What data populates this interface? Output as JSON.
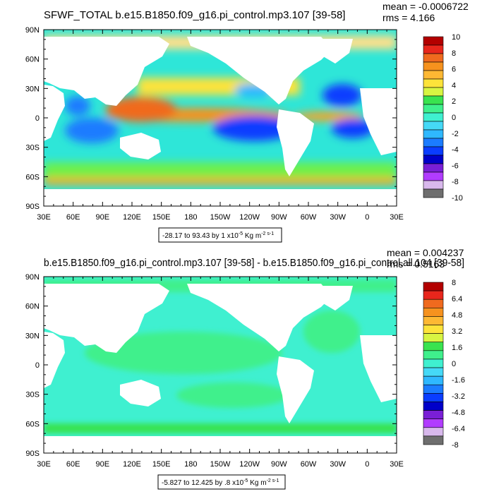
{
  "chart_data": [
    {
      "type": "heatmap",
      "title": "SFWF_TOTAL b.e15.B1850.f09_g16.pi_control.mp3.107 [39-58]",
      "mean_text": "mean = -0.0006722",
      "rms_text": "rms = 4.166",
      "range_note": "-28.17 to 93.43 by 1 x10",
      "range_unit_exp": "-5",
      "range_unit": " Kg m",
      "range_unit_exp2": "-2 s-1",
      "x_ticks": [
        "30E",
        "60E",
        "90E",
        "120E",
        "150E",
        "180",
        "150W",
        "120W",
        "90W",
        "60W",
        "30W",
        "0",
        "30E"
      ],
      "y_ticks": [
        "90N",
        "60N",
        "30N",
        "0",
        "30S",
        "60S",
        "90S"
      ],
      "colorbar_labels": [
        "10",
        "8",
        "6",
        "4",
        "2",
        "0",
        "-2",
        "-4",
        "-6",
        "-8",
        "-10"
      ],
      "colorbar_colors": [
        "#b30000",
        "#e8261c",
        "#f06a1e",
        "#f6921e",
        "#fdb833",
        "#fde33a",
        "#d8f542",
        "#39e34f",
        "#3ff08c",
        "#3ff0d0",
        "#45d9f7",
        "#2fb8ff",
        "#1b7cff",
        "#0a3dff",
        "#0000c9",
        "#7a1fd6",
        "#b13cff",
        "#d8b8ec",
        "#6e6e6e"
      ]
    },
    {
      "type": "heatmap",
      "title": "b.e15.B1850.f09_g16.pi_control.mp3.107 [39-58] - b.e15.B1850.f09_g16.pi_control.all.104 [39-58]",
      "mean_text": "mean = 0.004237",
      "rms_text": "rms = 0.5163",
      "range_note": "-5.827 to 12.425 by .8 x10",
      "range_unit_exp": "-5",
      "range_unit": " Kg m",
      "range_unit_exp2": "-2 s-1",
      "x_ticks": [
        "30E",
        "60E",
        "90E",
        "120E",
        "150E",
        "180",
        "150W",
        "120W",
        "90W",
        "60W",
        "30W",
        "0",
        "30E"
      ],
      "y_ticks": [
        "90N",
        "60N",
        "30N",
        "0",
        "30S",
        "60S",
        "90S"
      ],
      "colorbar_labels": [
        "8",
        "6.4",
        "4.8",
        "3.2",
        "1.6",
        "0",
        "-1.6",
        "-3.2",
        "-4.8",
        "-6.4",
        "-8"
      ],
      "colorbar_colors": [
        "#b30000",
        "#e8261c",
        "#f06a1e",
        "#f6921e",
        "#fdb833",
        "#fde33a",
        "#d8f542",
        "#39e34f",
        "#3ff08c",
        "#3ff0d0",
        "#45d9f7",
        "#2fb8ff",
        "#1b7cff",
        "#0a3dff",
        "#0000c9",
        "#7a1fd6",
        "#b13cff",
        "#d8b8ec",
        "#6e6e6e"
      ]
    }
  ]
}
